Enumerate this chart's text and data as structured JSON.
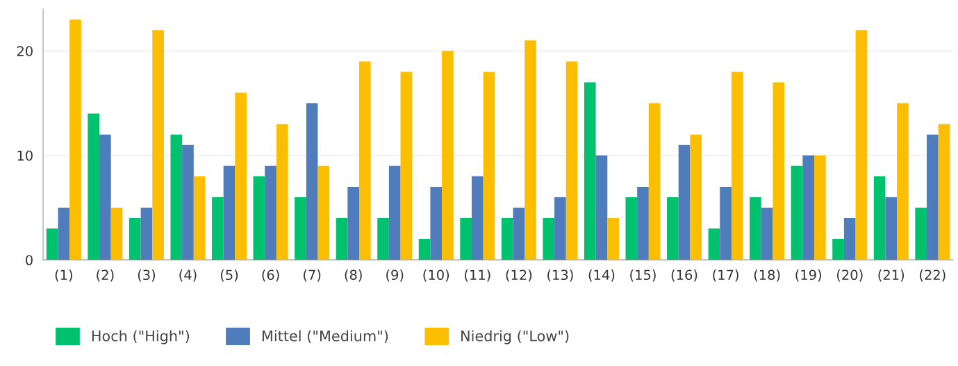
{
  "chart_data": {
    "type": "bar",
    "categories": [
      "(1)",
      "(2)",
      "(3)",
      "(4)",
      "(5)",
      "(6)",
      "(7)",
      "(8)",
      "(9)",
      "(10)",
      "(11)",
      "(12)",
      "(13)",
      "(14)",
      "(15)",
      "(16)",
      "(17)",
      "(18)",
      "(19)",
      "(20)",
      "(21)",
      "(22)"
    ],
    "series": [
      {
        "name": "Hoch (\"High\")",
        "color": "#00c16e",
        "values": [
          3,
          14,
          4,
          12,
          6,
          8,
          6,
          4,
          4,
          2,
          4,
          4,
          4,
          17,
          6,
          6,
          3,
          6,
          9,
          2,
          8,
          5
        ]
      },
      {
        "name": "Mittel (\"Medium\")",
        "color": "#4f7cba",
        "values": [
          5,
          12,
          5,
          11,
          9,
          9,
          15,
          7,
          9,
          7,
          8,
          5,
          6,
          10,
          7,
          11,
          7,
          5,
          10,
          4,
          6,
          12
        ]
      },
      {
        "name": "Niedrig (\"Low\")",
        "color": "#fbbe00",
        "values": [
          23,
          5,
          22,
          8,
          16,
          13,
          9,
          19,
          18,
          20,
          18,
          21,
          19,
          4,
          15,
          12,
          18,
          17,
          10,
          22,
          15,
          13
        ]
      }
    ],
    "ylim": [
      0,
      24
    ],
    "yticks": [
      0,
      10,
      20
    ],
    "grid": "y",
    "legend": "bottom left"
  }
}
